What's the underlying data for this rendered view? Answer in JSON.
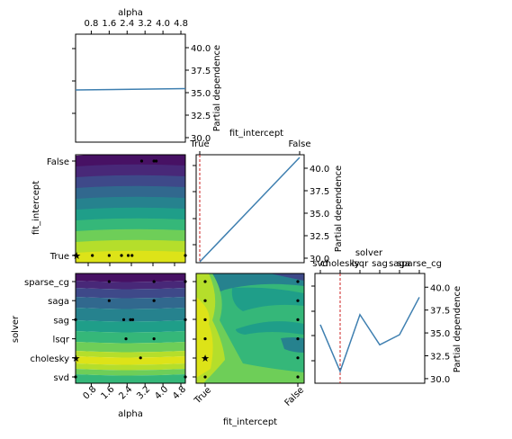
{
  "chart_data": {
    "type": "partial-dependence-matrix",
    "colors": {
      "line": "#3e7fb0",
      "true_value_line": "#cc2222",
      "minimum_marker": "#e0241c",
      "samples": "#000000",
      "contour": [
        "#471164",
        "#482878",
        "#3e4989",
        "#31688e",
        "#26828e",
        "#1f9e89",
        "#35b779",
        "#6ece58",
        "#b5de2b",
        "#dde318"
      ]
    },
    "panels": [
      {
        "id": "alpha-pd",
        "type": "line",
        "xlabel": "alpha",
        "ylabel": "Partial dependence",
        "xlim": [
          0.1,
          5.0
        ],
        "ylim": [
          29.5,
          41.5
        ],
        "xticks": [
          0.8,
          1.6,
          2.4,
          3.2,
          4.0,
          4.8
        ],
        "xtick_labels": [
          "0.8",
          "1.6",
          "2.4",
          "3.2",
          "4.0",
          "4.8"
        ],
        "yticks": [
          30.0,
          32.5,
          35.0,
          37.5,
          40.0
        ],
        "ytick_labels": [
          "30.0",
          "32.5",
          "35.0",
          "37.5",
          "40.0"
        ],
        "x": [
          0.1,
          5.0
        ],
        "y": [
          35.3,
          35.45
        ]
      },
      {
        "id": "fit_intercept-pd",
        "type": "line",
        "xlabel": "fit_intercept",
        "ylabel": "Partial dependence",
        "categories": [
          "True",
          "False"
        ],
        "ylim": [
          29.5,
          41.5
        ],
        "yticks": [
          30.0,
          32.5,
          35.0,
          37.5,
          40.0
        ],
        "ytick_labels": [
          "30.0",
          "32.5",
          "35.0",
          "37.5",
          "40.0"
        ],
        "values": [
          29.6,
          41.2
        ],
        "true_value": "True"
      },
      {
        "id": "solver-pd",
        "type": "line",
        "xlabel": "solver",
        "ylabel": "Partial dependence",
        "categories": [
          "svd",
          "cholesky",
          "lsqr",
          "sag",
          "saga",
          "sparse_cg"
        ],
        "ylim": [
          29.5,
          41.5
        ],
        "yticks": [
          30.0,
          32.5,
          35.0,
          37.5,
          40.0
        ],
        "ytick_labels": [
          "30.0",
          "32.5",
          "35.0",
          "37.5",
          "40.0"
        ],
        "values": [
          35.9,
          30.8,
          37.0,
          33.7,
          34.8,
          38.9
        ],
        "true_value": "cholesky"
      },
      {
        "id": "alpha-vs-fit_intercept",
        "type": "heatmap",
        "ylabel": "fit_intercept",
        "yticks": [
          "False",
          "True"
        ],
        "samples": [
          [
            0.1,
            0
          ],
          [
            0.85,
            0
          ],
          [
            1.6,
            0
          ],
          [
            2.15,
            0
          ],
          [
            2.45,
            0
          ],
          [
            2.62,
            0
          ],
          [
            5.0,
            0
          ],
          [
            3.05,
            1
          ],
          [
            3.6,
            1
          ],
          [
            3.7,
            1
          ]
        ],
        "minimum": [
          0.15,
          0
        ]
      },
      {
        "id": "fit_intercept-vs-solver",
        "type": "heatmap",
        "samples": [
          [
            0,
            0
          ],
          [
            0,
            1
          ],
          [
            0,
            2
          ],
          [
            0,
            3
          ],
          [
            0,
            4
          ],
          [
            0,
            5
          ],
          [
            1,
            0
          ],
          [
            1,
            1
          ],
          [
            1,
            2
          ],
          [
            1,
            3
          ],
          [
            1,
            4
          ],
          [
            1,
            5
          ]
        ],
        "minimum": [
          0,
          1
        ]
      },
      {
        "id": "alpha-vs-solver",
        "type": "heatmap",
        "xlabel": "alpha",
        "ylabel": "solver",
        "xticks": [
          0.8,
          1.6,
          2.4,
          3.2,
          4.0,
          4.8
        ],
        "xtick_labels": [
          "0.8",
          "1.6",
          "2.4",
          "3.2",
          "4.0",
          "4.8"
        ],
        "yticks": [
          "sparse_cg",
          "saga",
          "sag",
          "lsqr",
          "cholesky",
          "svd"
        ],
        "samples": [
          [
            1.6,
            5
          ],
          [
            5.0,
            5
          ],
          [
            1.6,
            4
          ],
          [
            3.6,
            4
          ],
          [
            0.1,
            3
          ],
          [
            2.25,
            3
          ],
          [
            2.55,
            3
          ],
          [
            2.65,
            3
          ],
          [
            5.0,
            3
          ],
          [
            2.35,
            2
          ],
          [
            3.6,
            2
          ],
          [
            3.0,
            1
          ],
          [
            0.1,
            0
          ],
          [
            5.0,
            0
          ],
          [
            3.6,
            5
          ]
        ],
        "minimum": [
          0.12,
          1
        ]
      },
      {
        "id": "bottom-middle-axis",
        "type": "heatmap",
        "xlabel": "fit_intercept",
        "xtick_labels": [
          "True",
          "False"
        ]
      }
    ]
  }
}
